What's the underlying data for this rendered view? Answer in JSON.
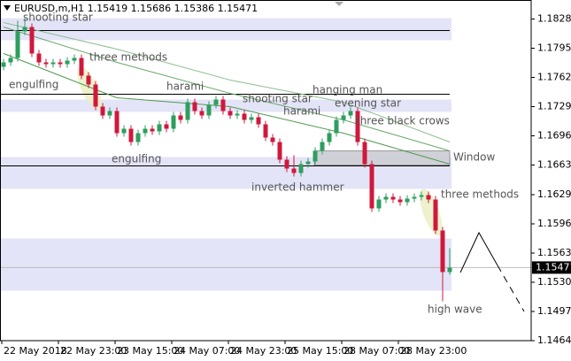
{
  "chart_data": {
    "type": "candlestick",
    "title": "EURUSD,m,H1  1.15419 1.15686 1.15386 1.15471",
    "up_color": "#2e9e5e",
    "down_color": "#d0183c",
    "open": [
      1.1774,
      1.1779,
      1.1784,
      1.1814,
      1.1819,
      1.1789,
      1.1779,
      1.1777,
      1.1779,
      1.1777,
      1.1781,
      1.1784,
      1.1764,
      1.1754,
      1.1729,
      1.1719,
      1.1724,
      1.1699,
      1.1704,
      1.1689,
      1.1699,
      1.1704,
      1.1701,
      1.1709,
      1.1704,
      1.1719,
      1.1714,
      1.1734,
      1.1724,
      1.1719,
      1.1731,
      1.1737,
      1.1724,
      1.1719,
      1.1721,
      1.1714,
      1.1717,
      1.1709,
      1.1694,
      1.1689,
      1.1669,
      1.1659,
      1.1654,
      1.1664,
      1.1667,
      1.1679,
      1.1689,
      1.1699,
      1.1714,
      1.1719,
      1.1724,
      1.1689,
      1.1664,
      1.1614,
      1.1624,
      1.1627,
      1.1624,
      1.1621,
      1.1625,
      1.1627,
      1.1629,
      1.1624,
      1.1589,
      1.1542
    ],
    "high": [
      1.1783,
      1.1788,
      1.1826,
      1.1829,
      1.1823,
      1.1793,
      1.1783,
      1.1783,
      1.1783,
      1.1785,
      1.1788,
      1.1788,
      1.1768,
      1.1758,
      1.1733,
      1.1728,
      1.1728,
      1.1708,
      1.1708,
      1.1703,
      1.1708,
      1.1708,
      1.1713,
      1.1713,
      1.1723,
      1.1723,
      1.1738,
      1.1738,
      1.1728,
      1.1735,
      1.1741,
      1.1741,
      1.1728,
      1.1725,
      1.1725,
      1.1721,
      1.1721,
      1.1713,
      1.1698,
      1.1693,
      1.1673,
      1.1674,
      1.1668,
      1.1671,
      1.1683,
      1.1693,
      1.1703,
      1.1718,
      1.1723,
      1.1728,
      1.1728,
      1.1693,
      1.1668,
      1.1628,
      1.1631,
      1.1631,
      1.1628,
      1.1629,
      1.1631,
      1.1633,
      1.1633,
      1.1628,
      1.1593,
      1.1569
    ],
    "low": [
      1.177,
      1.1775,
      1.178,
      1.181,
      1.1785,
      1.1775,
      1.1773,
      1.1773,
      1.1773,
      1.1773,
      1.1777,
      1.176,
      1.175,
      1.1725,
      1.1715,
      1.1715,
      1.1695,
      1.1695,
      1.1685,
      1.1685,
      1.1695,
      1.1697,
      1.1697,
      1.17,
      1.17,
      1.171,
      1.171,
      1.172,
      1.1715,
      1.1715,
      1.1727,
      1.172,
      1.1715,
      1.1715,
      1.171,
      1.171,
      1.1705,
      1.169,
      1.1685,
      1.1665,
      1.1655,
      1.165,
      1.165,
      1.166,
      1.1663,
      1.1675,
      1.1685,
      1.1695,
      1.171,
      1.1715,
      1.1685,
      1.166,
      1.161,
      1.161,
      1.162,
      1.162,
      1.1617,
      1.1617,
      1.1621,
      1.1623,
      1.162,
      1.1585,
      1.1509,
      1.1539
    ],
    "close": [
      1.1779,
      1.1784,
      1.1814,
      1.1819,
      1.1789,
      1.1779,
      1.1777,
      1.1779,
      1.1777,
      1.1781,
      1.1784,
      1.1764,
      1.1754,
      1.1729,
      1.1719,
      1.1724,
      1.1699,
      1.1704,
      1.1689,
      1.1699,
      1.1704,
      1.1701,
      1.1709,
      1.1704,
      1.1719,
      1.1714,
      1.1734,
      1.1724,
      1.1719,
      1.1731,
      1.1737,
      1.1724,
      1.1719,
      1.1721,
      1.1714,
      1.1717,
      1.1709,
      1.1694,
      1.1689,
      1.1669,
      1.1659,
      1.1654,
      1.1664,
      1.1667,
      1.1679,
      1.1689,
      1.1699,
      1.1714,
      1.1719,
      1.1724,
      1.1689,
      1.1664,
      1.1614,
      1.1624,
      1.1627,
      1.1624,
      1.1621,
      1.1625,
      1.1627,
      1.1629,
      1.1624,
      1.1589,
      1.1542,
      1.1547
    ],
    "moving_averages": [
      {
        "color": "#8fbf8f",
        "x": [
          0,
          16,
          32,
          48,
          63
        ],
        "values": [
          1.1824,
          1.1794,
          1.1759,
          1.1734,
          1.1689
        ]
      },
      {
        "color": "#6aa86a",
        "x": [
          0,
          16,
          32,
          48,
          63
        ],
        "values": [
          1.1819,
          1.1779,
          1.1744,
          1.1714,
          1.1679
        ]
      },
      {
        "color": "#4f9a4f",
        "x": [
          0,
          16,
          32,
          48,
          63
        ],
        "values": [
          1.1789,
          1.1739,
          1.1729,
          1.1699,
          1.1664
        ]
      }
    ],
    "zones": [
      [
        1.1829,
        1.1804
      ],
      [
        1.1737,
        1.1723
      ],
      [
        1.1672,
        1.1636
      ],
      [
        1.158,
        1.1521
      ]
    ],
    "zone_color": "#e4e4f8",
    "levels": [
      1.1815,
      1.1743,
      1.1662
    ],
    "gap_box": [
      1.1679,
      1.1663
    ],
    "current_price": {
      "value": 1.15471,
      "label": "1.15471"
    },
    "annotations": [
      "shooting star",
      "three methods",
      "engulfing",
      "harami",
      "shooting star",
      "harami",
      "hanging man",
      "evening star",
      "three black crows",
      "engulfing",
      "Window",
      "inverted hammer",
      "three methods",
      "high wave"
    ],
    "ylim": [
      1.14645,
      1.18495
    ],
    "yticks": [
      {
        "value": 1.1828,
        "label": "1.18280"
      },
      {
        "value": 1.1795,
        "label": "1.17950"
      },
      {
        "value": 1.1762,
        "label": "1.17620"
      },
      {
        "value": 1.1729,
        "label": "1.17290"
      },
      {
        "value": 1.1696,
        "label": "1.16960"
      },
      {
        "value": 1.1663,
        "label": "1.16630"
      },
      1.16295,
      1.15965,
      1.15635,
      1.15305,
      1.14975,
      1.14645
    ],
    "xticks": [
      {
        "value": 0,
        "label": "22 May 2018"
      },
      {
        "value": 8,
        "label": "22 May 23:00"
      },
      {
        "value": 16,
        "label": "23 May 15:00"
      },
      {
        "value": 24,
        "label": "24 May 07:00"
      },
      {
        "value": 32,
        "label": "24 May 23:00"
      },
      {
        "value": 40,
        "label": "25 May 15:00"
      },
      {
        "value": 48,
        "label": "28 May 07:00"
      },
      {
        "value": 56,
        "label": "28 May 23:00"
      }
    ]
  }
}
